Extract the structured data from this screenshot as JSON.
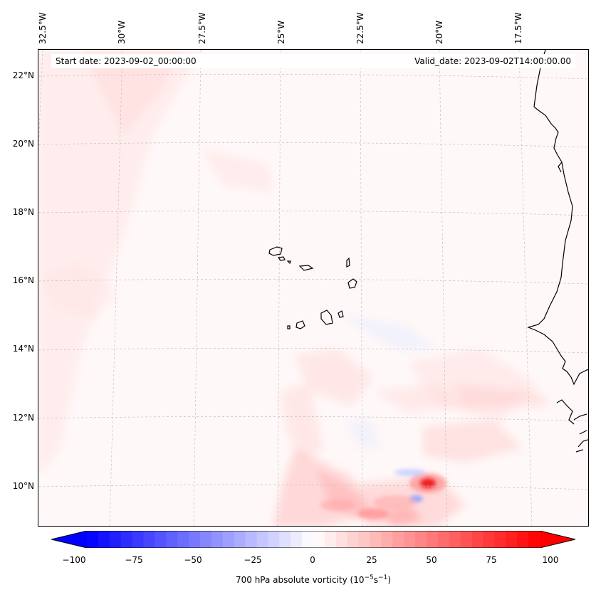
{
  "map": {
    "header": {
      "start_date": "Start date: 2023-09-02_00:00:00",
      "valid_date": "Valid_date: 2023-09-02T14:00:00.00"
    },
    "lon_labels": [
      "32.5°W",
      "30°W",
      "27.5°W",
      "25°W",
      "22.5°W",
      "20°W",
      "17.5°W"
    ],
    "lat_labels": [
      "22°N",
      "20°N",
      "18°N",
      "16°N",
      "14°N",
      "12°N",
      "10°N"
    ],
    "colorbar": {
      "ticks": [
        "−100",
        "−75",
        "−50",
        "−25",
        "0",
        "25",
        "50",
        "75",
        "100"
      ],
      "label": "700 hPa absolute vorticity (10",
      "label_exp1": "−5",
      "label_mid": "s",
      "label_exp2": "−1",
      "label_end": ")",
      "min": -100,
      "max": 100,
      "levels": 40,
      "negative_color": "#0000ff",
      "positive_color": "#ff0000",
      "mid_color": "#ffffff"
    },
    "field": {
      "max_vorticity_center": "approx. 100 near 20°W 10°N",
      "min_vorticity_center": "approx. -25 near 20.2°W 9.8°N"
    }
  }
}
